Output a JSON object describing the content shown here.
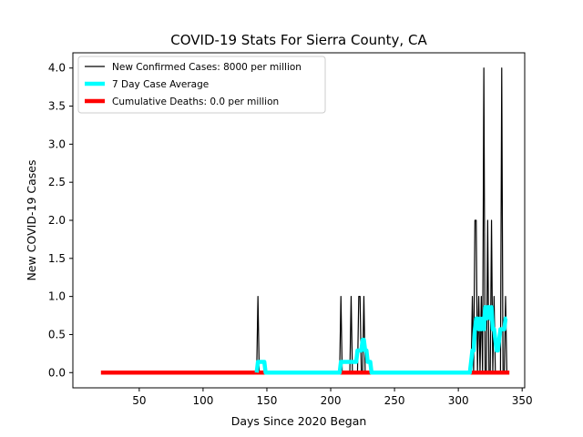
{
  "chart_data": {
    "type": "line",
    "title": "COVID-19 Stats For Sierra County, CA",
    "xlabel": "Days Since 2020 Began",
    "ylabel": "New COVID-19 Cases",
    "xlim": [
      -2,
      352
    ],
    "ylim": [
      -0.2,
      4.2
    ],
    "xticks": [
      50,
      100,
      150,
      200,
      250,
      300,
      350
    ],
    "yticks": [
      0.0,
      0.5,
      1.0,
      1.5,
      2.0,
      2.5,
      3.0,
      3.5,
      4.0
    ],
    "ytick_labels": [
      "0.0",
      "0.5",
      "1.0",
      "1.5",
      "2.0",
      "2.5",
      "3.0",
      "3.5",
      "4.0"
    ],
    "grid": false,
    "legend_position": "top-left",
    "series": [
      {
        "name": "New Confirmed Cases: 8000 per million",
        "color": "#000000",
        "x": [
          140,
          141,
          142,
          143,
          144,
          145,
          205,
          206,
          207,
          208,
          209,
          210,
          213,
          214,
          215,
          216,
          217,
          220,
          221,
          222,
          223,
          224,
          225,
          226,
          227,
          228,
          229,
          230,
          309,
          310,
          311,
          312,
          313,
          314,
          315,
          316,
          317,
          318,
          319,
          320,
          321,
          322,
          323,
          324,
          325,
          326,
          327,
          328,
          329,
          330,
          331,
          332,
          333,
          334,
          335,
          336,
          337,
          338
        ],
        "y": [
          0,
          0,
          0,
          1,
          0,
          0,
          0,
          0,
          0,
          1,
          0,
          0,
          0,
          0,
          0,
          1,
          0,
          0,
          0,
          1,
          1,
          0,
          0,
          1,
          0,
          0,
          0,
          0,
          0,
          0,
          1,
          0,
          2,
          2,
          0,
          1,
          0,
          1,
          0,
          4,
          0,
          0,
          2,
          0,
          0,
          2,
          0,
          1,
          0,
          0,
          0,
          0,
          0,
          4,
          0,
          0,
          1,
          0
        ]
      },
      {
        "name": "7 Day Case Average",
        "color": "#00ffff",
        "x": [
          142,
          143,
          144,
          148,
          149,
          150,
          207,
          208,
          209,
          214,
          215,
          216,
          217,
          219,
          220,
          221,
          222,
          223,
          224,
          225,
          226,
          227,
          228,
          229,
          230,
          231,
          232,
          309,
          310,
          311,
          312,
          313,
          314,
          315,
          316,
          317,
          318,
          319,
          320,
          321,
          322,
          323,
          324,
          325,
          326,
          327,
          328,
          329,
          330,
          331,
          332,
          333,
          334,
          335,
          336,
          337,
          338
        ],
        "y": [
          0,
          0.14,
          0.14,
          0.14,
          0,
          0,
          0,
          0.14,
          0.14,
          0.14,
          0.14,
          0.14,
          0.14,
          0.14,
          0.14,
          0.29,
          0.29,
          0.29,
          0.29,
          0.43,
          0.43,
          0.29,
          0.29,
          0.14,
          0.14,
          0.14,
          0,
          0,
          0.14,
          0.29,
          0.29,
          0.57,
          0.71,
          0.71,
          0.57,
          0.71,
          0.57,
          0.71,
          0.57,
          0.86,
          0.71,
          0.86,
          0.86,
          0.71,
          0.86,
          0.57,
          0.57,
          0.43,
          0.29,
          0.29,
          0.43,
          0.57,
          0.57,
          0.57,
          0.57,
          0.71,
          0.71
        ]
      },
      {
        "name": "Cumulative Deaths: 0.0 per million",
        "color": "#ff0000",
        "x": [
          20,
          340
        ],
        "y": [
          0,
          0
        ]
      }
    ]
  }
}
